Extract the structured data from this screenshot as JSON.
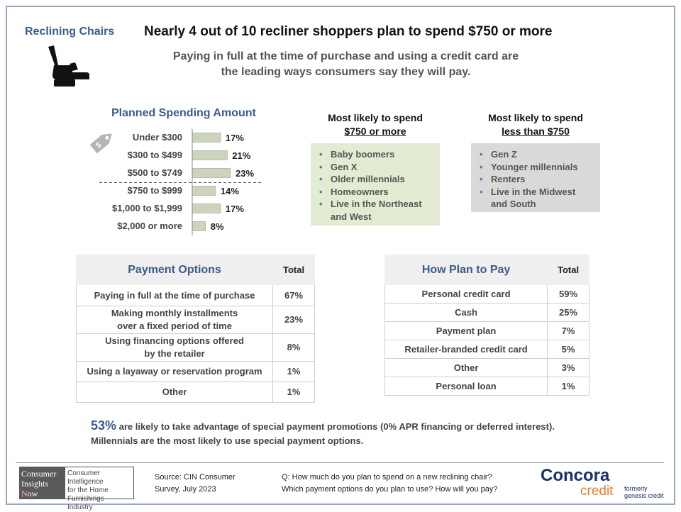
{
  "header": {
    "section_label": "Reclining Chairs",
    "headline": "Nearly 4 out of 10 recliner shoppers plan to spend $750 or more",
    "subhead_line1": "Paying in full at the time of purchase and using a credit card are",
    "subhead_line2": "the leading ways consumers say they will pay."
  },
  "chart_data": {
    "type": "bar",
    "orientation": "horizontal",
    "title": "Planned Spending Amount",
    "categories": [
      "Under $300",
      "$300 to $499",
      "$500 to $749",
      "$750 to $999",
      "$1,000 to $1,999",
      "$2,000 or more"
    ],
    "values": [
      17,
      21,
      23,
      14,
      17,
      8
    ],
    "value_labels": [
      "17%",
      "21%",
      "23%",
      "14%",
      "17%",
      "8%"
    ],
    "unit": "%",
    "xlim": [
      0,
      25
    ],
    "bar_color": "#ccd5bb",
    "bar_border": "#9aa38a",
    "divider_after_index": 2
  },
  "likely_750_plus": {
    "title_line1": "Most likely to spend",
    "title_line2": "$750 or more",
    "items": [
      "Baby boomers",
      "Gen X",
      "Older millennials",
      "Homeowners",
      "Live in the Northeast",
      "and West"
    ]
  },
  "likely_under_750": {
    "title_line1": "Most likely to spend",
    "title_line2": "less than $750",
    "items": [
      "Gen Z",
      "Younger millennials",
      "Renters",
      "Live in the Midwest",
      "and South"
    ]
  },
  "payment_options": {
    "title": "Payment Options",
    "col": "Total",
    "rows": [
      {
        "line1": "Paying in full at the time of purchase",
        "line2": "",
        "value": "67%"
      },
      {
        "line1": "Making monthly installments",
        "line2": "over a fixed period of time",
        "value": "23%"
      },
      {
        "line1": "Using financing options offered",
        "line2": "by the retailer",
        "value": "8%"
      },
      {
        "line1": "Using a layaway or reservation program",
        "line2": "",
        "value": "1%"
      },
      {
        "line1": "Other",
        "line2": "",
        "value": "1%"
      }
    ]
  },
  "how_plan_to_pay": {
    "title": "How Plan to Pay",
    "col": "Total",
    "rows": [
      {
        "label": "Personal credit card",
        "value": "59%"
      },
      {
        "label": "Cash",
        "value": "25%"
      },
      {
        "label": "Payment plan",
        "value": "7%"
      },
      {
        "label": "Retailer-branded credit card",
        "value": "5%"
      },
      {
        "label": "Other",
        "value": "3%"
      },
      {
        "label": "Personal loan",
        "value": "1%"
      }
    ]
  },
  "promo": {
    "stat": "53%",
    "line1_rest": " are likely to take advantage of special payment promotions (0% APR financing or deferred interest).",
    "line2": "Millennials are the most likely to use special payment options."
  },
  "footer": {
    "cin_logo_l1": "Consumer",
    "cin_logo_l2": "Insights",
    "cin_logo_n": "N",
    "cin_logo_l3_rest": "ow",
    "cin_tag_l1": "Consumer Intelligence",
    "cin_tag_l2": "for the Home",
    "cin_tag_l3": "Furnishings Industry",
    "source_l1": "Source:  CIN Consumer",
    "source_l2": "Survey, July 2023",
    "question_l1": "Q: How much do you plan to spend on a new reclining chair?",
    "question_l2": "Which payment options do you plan to use? How will you pay?",
    "concora_l1": "Concora",
    "concora_l2": "credit",
    "formerly_l1": "formerly",
    "formerly_l2": "genesis credit"
  },
  "colors": {
    "accent_blue": "#3c5a8c",
    "frame": "#9aa9c2",
    "green_box": "#e3ebd2",
    "gray_box": "#d9d9d9"
  },
  "icons": [
    "recliner-chair-icon",
    "price-tag-icon"
  ]
}
